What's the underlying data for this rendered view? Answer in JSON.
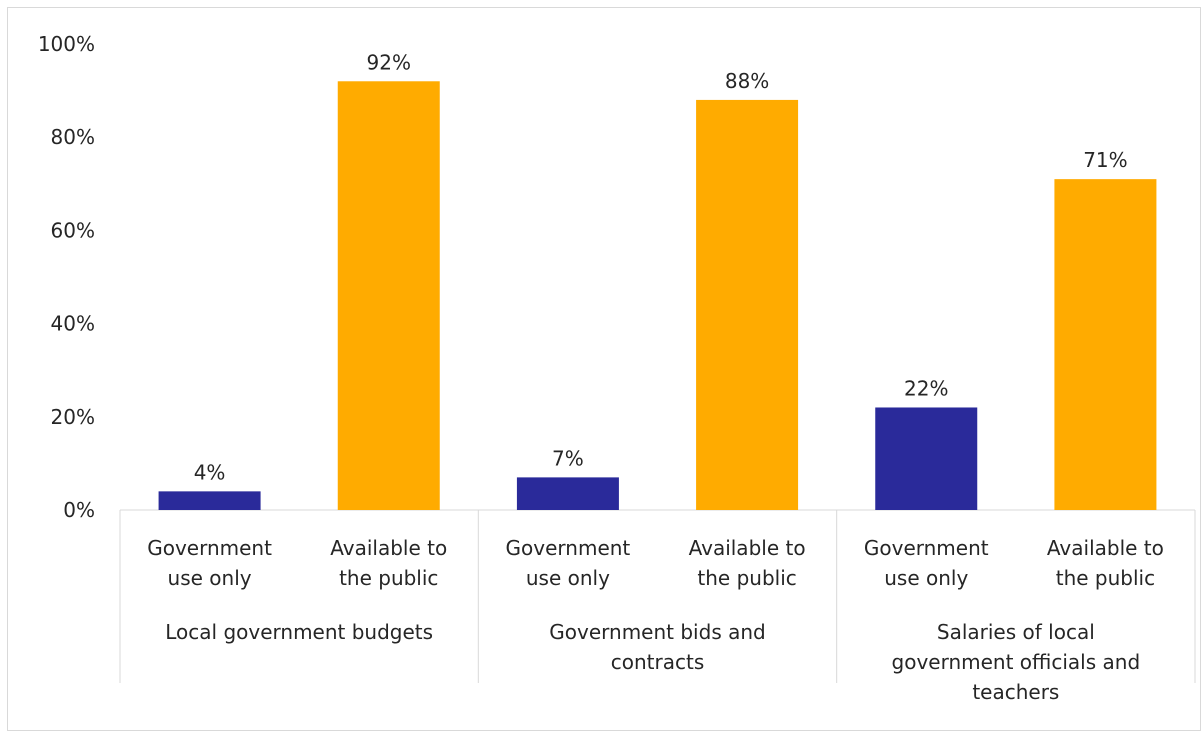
{
  "chart_data": {
    "type": "bar",
    "title": "",
    "ylabel": "",
    "ylim": [
      0,
      100
    ],
    "yticks": [
      "0%",
      "20%",
      "40%",
      "60%",
      "80%",
      "100%"
    ],
    "grid": false,
    "legend": "none",
    "groups": [
      {
        "label": "Local government budgets",
        "label_lines": [
          "Local government budgets"
        ],
        "bars": [
          {
            "category": "Government use only",
            "category_lines": [
              "Government",
              "use only"
            ],
            "value": 4,
            "label": "4%",
            "color": "#2a2a9a"
          },
          {
            "category": "Available to the public",
            "category_lines": [
              "Available to",
              "the public"
            ],
            "value": 92,
            "label": "92%",
            "color": "#ffab00"
          }
        ]
      },
      {
        "label": "Government bids and contracts",
        "label_lines": [
          "Government bids and",
          "contracts"
        ],
        "bars": [
          {
            "category": "Government use only",
            "category_lines": [
              "Government",
              "use only"
            ],
            "value": 7,
            "label": "7%",
            "color": "#2a2a9a"
          },
          {
            "category": "Available to the public",
            "category_lines": [
              "Available to",
              "the public"
            ],
            "value": 88,
            "label": "88%",
            "color": "#ffab00"
          }
        ]
      },
      {
        "label": "Salaries of local government officials and teachers",
        "label_lines": [
          "Salaries of local",
          "government officials and",
          "teachers"
        ],
        "bars": [
          {
            "category": "Government use only",
            "category_lines": [
              "Government",
              "use only"
            ],
            "value": 22,
            "label": "22%",
            "color": "#2a2a9a"
          },
          {
            "category": "Available to the public",
            "category_lines": [
              "Available to",
              "the public"
            ],
            "value": 71,
            "label": "71%",
            "color": "#ffab00"
          }
        ]
      }
    ]
  }
}
